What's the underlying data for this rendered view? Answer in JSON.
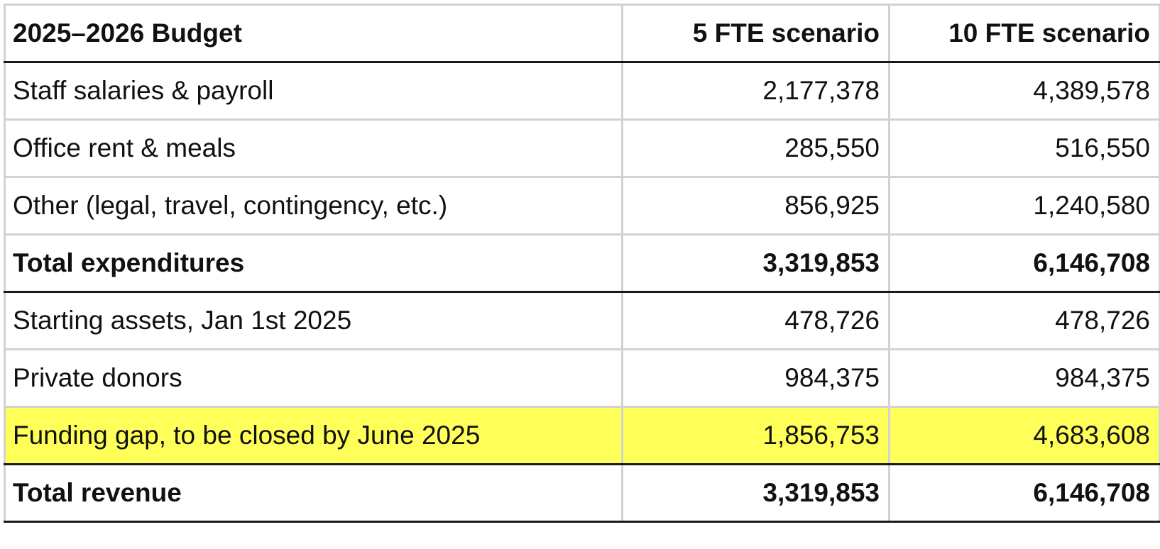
{
  "table": {
    "header": {
      "label": "2025–2026 Budget",
      "col1": "5 FTE scenario",
      "col2": "10 FTE scenario"
    },
    "rows": [
      {
        "label": "Staff salaries & payroll",
        "v1": "2,177,378",
        "v2": "4,389,578",
        "style": "normal"
      },
      {
        "label": "Office rent & meals",
        "v1": "285,550",
        "v2": "516,550",
        "style": "normal"
      },
      {
        "label": "Other (legal, travel, contingency, etc.)",
        "v1": "856,925",
        "v2": "1,240,580",
        "style": "normal"
      },
      {
        "label": "Total expenditures",
        "v1": "3,319,853",
        "v2": "6,146,708",
        "style": "bold"
      },
      {
        "label": "Starting assets, Jan 1st 2025",
        "v1": "478,726",
        "v2": "478,726",
        "style": "normal"
      },
      {
        "label": "Private donors",
        "v1": "984,375",
        "v2": "984,375",
        "style": "normal"
      },
      {
        "label": "Funding gap, to be closed by June 2025",
        "v1": "1,856,753",
        "v2": "4,683,608",
        "style": "highlight"
      },
      {
        "label": "Total revenue",
        "v1": "3,319,853",
        "v2": "6,146,708",
        "style": "bold"
      }
    ]
  },
  "colors": {
    "highlight": "#ffff5a",
    "grid": "#d2d2d2",
    "rule": "#1a1a1a"
  }
}
